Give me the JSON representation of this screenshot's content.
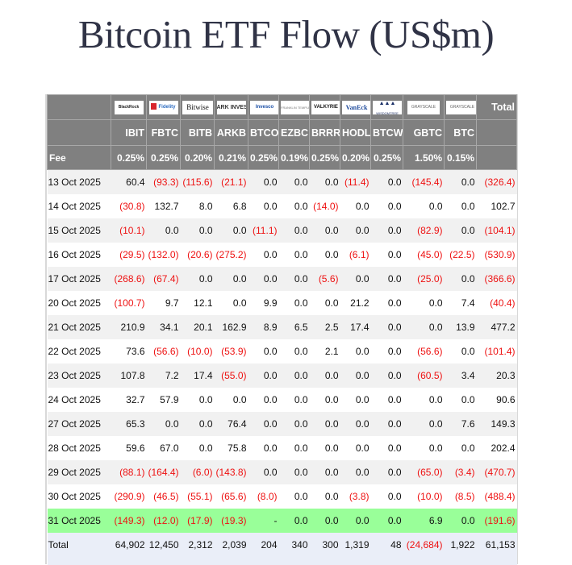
{
  "title": "Bitcoin ETF Flow (US$m)",
  "columns": [
    {
      "ticker": "IBIT",
      "issuer": "BlackRock",
      "logo_text": "BlackRock",
      "fee": "0.25%"
    },
    {
      "ticker": "FBTC",
      "issuer": "Fidelity",
      "logo_text": "Fidelity",
      "fee": "0.25%"
    },
    {
      "ticker": "BITB",
      "issuer": "Bitwise",
      "logo_text": "Bitwise",
      "fee": "0.20%"
    },
    {
      "ticker": "ARKB",
      "issuer": "ARK Invest",
      "logo_text": "ARK INVEST",
      "fee": "0.21%"
    },
    {
      "ticker": "BTCO",
      "issuer": "Invesco",
      "logo_text": "Invesco",
      "fee": "0.25%"
    },
    {
      "ticker": "EZBC",
      "issuer": "Franklin Templeton",
      "logo_text": "FRANKLIN TEMPLETON",
      "fee": "0.19%"
    },
    {
      "ticker": "BRRR",
      "issuer": "Valkyrie",
      "logo_text": "VALKYRIE",
      "fee": "0.25%"
    },
    {
      "ticker": "HODL",
      "issuer": "VanEck",
      "logo_text": "VanEck",
      "fee": "0.20%"
    },
    {
      "ticker": "BTCW",
      "issuer": "WisdomTree",
      "logo_text": "WISDOMTREE",
      "fee": "0.25%"
    },
    {
      "ticker": "GBTC",
      "issuer": "Grayscale",
      "logo_text": "GRAYSCALE",
      "fee": "1.50%"
    },
    {
      "ticker": "BTC",
      "issuer": "Grayscale",
      "logo_text": "GRAYSCALE",
      "fee": "0.15%"
    }
  ],
  "header": {
    "total_label": "Total",
    "fee_label": "Fee"
  },
  "rows": [
    {
      "date": "13 Oct 2025",
      "values": [
        "60.4",
        "(93.3)",
        "(115.6)",
        "(21.1)",
        "0.0",
        "0.0",
        "0.0",
        "(11.4)",
        "0.0",
        "(145.4)",
        "0.0"
      ],
      "total": "(326.4)"
    },
    {
      "date": "14 Oct 2025",
      "values": [
        "(30.8)",
        "132.7",
        "8.0",
        "6.8",
        "0.0",
        "0.0",
        "(14.0)",
        "0.0",
        "0.0",
        "0.0",
        "0.0"
      ],
      "total": "102.7"
    },
    {
      "date": "15 Oct 2025",
      "values": [
        "(10.1)",
        "0.0",
        "0.0",
        "0.0",
        "(11.1)",
        "0.0",
        "0.0",
        "0.0",
        "0.0",
        "(82.9)",
        "0.0"
      ],
      "total": "(104.1)"
    },
    {
      "date": "16 Oct 2025",
      "values": [
        "(29.5)",
        "(132.0)",
        "(20.6)",
        "(275.2)",
        "0.0",
        "0.0",
        "0.0",
        "(6.1)",
        "0.0",
        "(45.0)",
        "(22.5)"
      ],
      "total": "(530.9)"
    },
    {
      "date": "17 Oct 2025",
      "values": [
        "(268.6)",
        "(67.4)",
        "0.0",
        "0.0",
        "0.0",
        "0.0",
        "(5.6)",
        "0.0",
        "0.0",
        "(25.0)",
        "0.0"
      ],
      "total": "(366.6)"
    },
    {
      "date": "20 Oct 2025",
      "values": [
        "(100.7)",
        "9.7",
        "12.1",
        "0.0",
        "9.9",
        "0.0",
        "0.0",
        "21.2",
        "0.0",
        "0.0",
        "7.4"
      ],
      "total": "(40.4)"
    },
    {
      "date": "21 Oct 2025",
      "values": [
        "210.9",
        "34.1",
        "20.1",
        "162.9",
        "8.9",
        "6.5",
        "2.5",
        "17.4",
        "0.0",
        "0.0",
        "13.9"
      ],
      "total": "477.2"
    },
    {
      "date": "22 Oct 2025",
      "values": [
        "73.6",
        "(56.6)",
        "(10.0)",
        "(53.9)",
        "0.0",
        "0.0",
        "2.1",
        "0.0",
        "0.0",
        "(56.6)",
        "0.0"
      ],
      "total": "(101.4)"
    },
    {
      "date": "23 Oct 2025",
      "values": [
        "107.8",
        "7.2",
        "17.4",
        "(55.0)",
        "0.0",
        "0.0",
        "0.0",
        "0.0",
        "0.0",
        "(60.5)",
        "3.4"
      ],
      "total": "20.3"
    },
    {
      "date": "24 Oct 2025",
      "values": [
        "32.7",
        "57.9",
        "0.0",
        "0.0",
        "0.0",
        "0.0",
        "0.0",
        "0.0",
        "0.0",
        "0.0",
        "0.0"
      ],
      "total": "90.6"
    },
    {
      "date": "27 Oct 2025",
      "values": [
        "65.3",
        "0.0",
        "0.0",
        "76.4",
        "0.0",
        "0.0",
        "0.0",
        "0.0",
        "0.0",
        "0.0",
        "7.6"
      ],
      "total": "149.3"
    },
    {
      "date": "28 Oct 2025",
      "values": [
        "59.6",
        "67.0",
        "0.0",
        "75.8",
        "0.0",
        "0.0",
        "0.0",
        "0.0",
        "0.0",
        "0.0",
        "0.0"
      ],
      "total": "202.4"
    },
    {
      "date": "29 Oct 2025",
      "values": [
        "(88.1)",
        "(164.4)",
        "(6.0)",
        "(143.8)",
        "0.0",
        "0.0",
        "0.0",
        "0.0",
        "0.0",
        "(65.0)",
        "(3.4)"
      ],
      "total": "(470.7)"
    },
    {
      "date": "30 Oct 2025",
      "values": [
        "(290.9)",
        "(46.5)",
        "(55.1)",
        "(65.6)",
        "(8.0)",
        "0.0",
        "0.0",
        "(3.8)",
        "0.0",
        "(10.0)",
        "(8.5)"
      ],
      "total": "(488.4)"
    },
    {
      "date": "31 Oct 2025",
      "values": [
        "(149.3)",
        "(12.0)",
        "(17.9)",
        "(19.3)",
        "-",
        "0.0",
        "0.0",
        "0.0",
        "0.0",
        "6.9",
        "0.0"
      ],
      "total": "(191.6)",
      "highlight": true
    }
  ],
  "totals": {
    "label": "Total",
    "values": [
      "64,902",
      "12,450",
      "2,312",
      "2,039",
      "204",
      "340",
      "300",
      "1,319",
      "48",
      "(24,684)",
      "1,922"
    ],
    "total": "61,153"
  },
  "colors": {
    "header_bg": "#808080",
    "negative": "#ee1111",
    "highlight_row": "#99ff99",
    "total_row": "#eaeef8",
    "title": "#303346"
  }
}
